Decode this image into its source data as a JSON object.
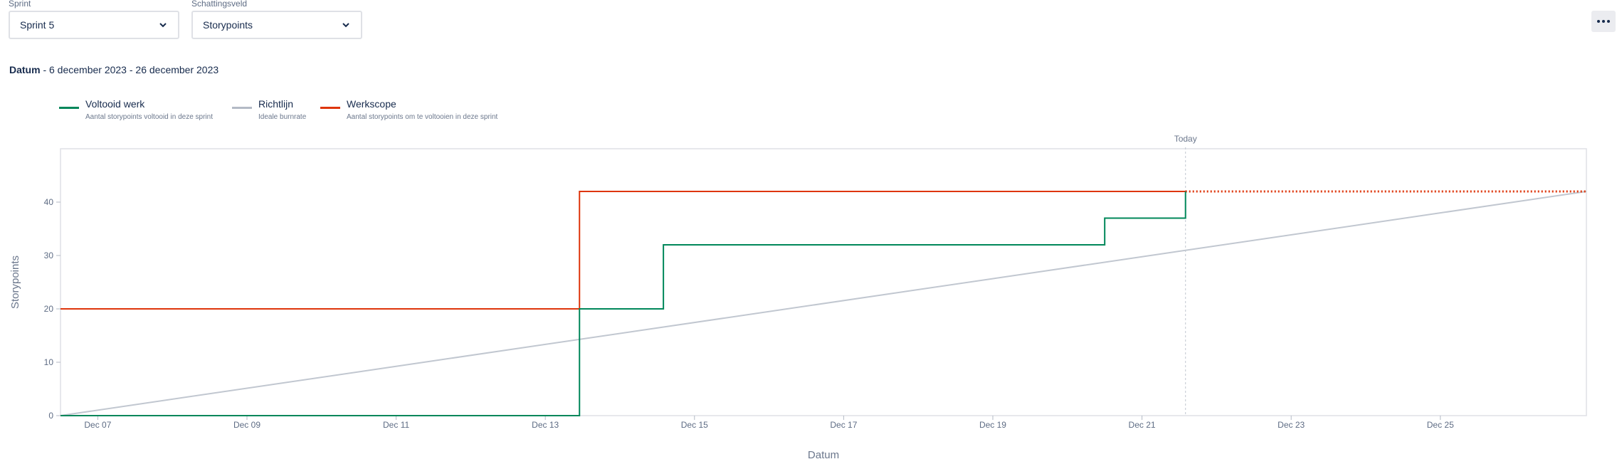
{
  "filters": {
    "sprint": {
      "label": "Sprint",
      "value": "Sprint 5"
    },
    "estimate": {
      "label": "Schattingsveld",
      "value": "Storypoints"
    }
  },
  "more_icon": "more-horizontal-icon",
  "date_range": {
    "label": "Datum",
    "text": " - 6 december 2023 - 26 december 2023"
  },
  "legend": [
    {
      "title": "Voltooid werk",
      "desc": "Aantal storypoints voltooid in deze sprint",
      "color": "#00875a"
    },
    {
      "title": "Richtlijn",
      "desc": "Ideale burnrate",
      "color": "#b3bac5"
    },
    {
      "title": "Werkscope",
      "desc": "Aantal storypoints om te voltooien in deze sprint",
      "color": "#de350b"
    }
  ],
  "chart_data": {
    "type": "line",
    "xlabel": "Datum",
    "ylabel": "Storypoints",
    "x_domain": [
      "2023-12-06T12:00",
      "2023-12-26T23:00"
    ],
    "ylim": [
      0,
      50
    ],
    "y_ticks": [
      0,
      10,
      20,
      30,
      40
    ],
    "x_ticks": [
      "Dec 07",
      "Dec 09",
      "Dec 11",
      "Dec 13",
      "Dec 15",
      "Dec 17",
      "Dec 19",
      "Dec 21",
      "Dec 23",
      "Dec 25"
    ],
    "x_tick_dates": [
      "2023-12-07",
      "2023-12-09",
      "2023-12-11",
      "2023-12-13",
      "2023-12-15",
      "2023-12-17",
      "2023-12-19",
      "2023-12-21",
      "2023-12-23",
      "2023-12-25"
    ],
    "today": {
      "label": "Today",
      "date": "2023-12-21T14:00"
    },
    "series": [
      {
        "name": "Werkscope",
        "color": "#de350b",
        "step": true,
        "points": [
          [
            "2023-12-06T12:00",
            20
          ],
          [
            "2023-12-13T11:00",
            42
          ],
          [
            "2023-12-21T14:00",
            42
          ]
        ],
        "projection": [
          [
            "2023-12-21T14:00",
            42
          ],
          [
            "2023-12-26T23:00",
            42
          ]
        ]
      },
      {
        "name": "Voltooid werk",
        "color": "#00875a",
        "step": true,
        "points": [
          [
            "2023-12-06T12:00",
            0
          ],
          [
            "2023-12-13T11:00",
            20
          ],
          [
            "2023-12-14T14:00",
            32
          ],
          [
            "2023-12-20T12:00",
            37
          ],
          [
            "2023-12-21T14:00",
            42
          ]
        ]
      },
      {
        "name": "Richtlijn",
        "color": "#c1c7d0",
        "step": false,
        "points": [
          [
            "2023-12-06T12:00",
            0
          ],
          [
            "2023-12-26T23:00",
            42
          ]
        ]
      }
    ]
  }
}
